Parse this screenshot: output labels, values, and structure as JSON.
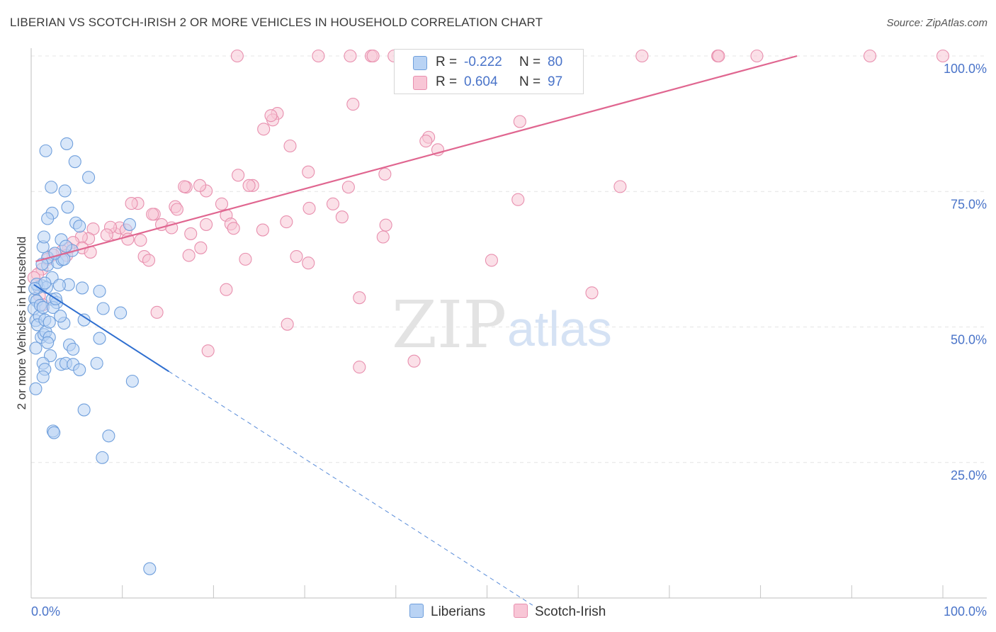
{
  "title": "LIBERIAN VS SCOTCH-IRISH 2 OR MORE VEHICLES IN HOUSEHOLD CORRELATION CHART",
  "source": "Source: ZipAtlas.com",
  "watermark": {
    "zip": "ZIP",
    "atlas": "atlas"
  },
  "colors": {
    "blue_fill": "#b9d3f4",
    "blue_stroke": "#6f9fdc",
    "blue_line": "#2f6fd0",
    "pink_fill": "#f8c6d6",
    "pink_stroke": "#e88fae",
    "pink_line": "#e06690",
    "tick": "#4a74c9",
    "grid": "#e4e4e4"
  },
  "legend": {
    "rows": [
      {
        "series": "Liberians",
        "r_label": "R =",
        "r_value": "-0.222",
        "n_label": "N =",
        "n_value": "80"
      },
      {
        "series": "Scotch-Irish",
        "r_label": "R =",
        "r_value": "0.604",
        "n_label": "N =",
        "n_value": "97"
      }
    ]
  },
  "bottom_legend": [
    "Liberians",
    "Scotch-Irish"
  ],
  "chart_data": {
    "type": "scatter",
    "title": "LIBERIAN VS SCOTCH-IRISH 2 OR MORE VEHICLES IN HOUSEHOLD CORRELATION CHART",
    "xlabel": "",
    "ylabel": "2 or more Vehicles in Household",
    "xlim": [
      0,
      100
    ],
    "ylim": [
      0,
      100
    ],
    "x_tick_labels": [
      "0.0%",
      "100.0%"
    ],
    "y_ticks": [
      25,
      50,
      75,
      100
    ],
    "y_tick_labels": [
      "25.0%",
      "50.0%",
      "75.0%",
      "100.0%"
    ],
    "series": [
      {
        "name": "Liberians",
        "r": -0.222,
        "n": 80,
        "trend": {
          "x0": 0.3,
          "y0": 57.8,
          "x1": 15.1,
          "y1": 41.8,
          "dash_to_x": 55.0
        },
        "points": [
          [
            0.4,
            55.2
          ],
          [
            0.6,
            54.8
          ],
          [
            0.8,
            57.3
          ],
          [
            1.2,
            57.6
          ],
          [
            0.3,
            53.4
          ],
          [
            0.5,
            51.2
          ],
          [
            0.9,
            52.0
          ],
          [
            0.7,
            50.4
          ],
          [
            1.0,
            54.0
          ],
          [
            1.3,
            53.6
          ],
          [
            0.5,
            46.1
          ],
          [
            1.1,
            48.1
          ],
          [
            1.4,
            48.6
          ],
          [
            1.6,
            49.1
          ],
          [
            2.0,
            48.1
          ],
          [
            1.8,
            47.1
          ],
          [
            2.3,
            55.1
          ],
          [
            2.8,
            54.5
          ],
          [
            1.7,
            57.3
          ],
          [
            2.4,
            53.6
          ],
          [
            1.5,
            51.3
          ],
          [
            2.1,
            44.7
          ],
          [
            1.3,
            43.3
          ],
          [
            1.5,
            42.2
          ],
          [
            1.3,
            40.8
          ],
          [
            0.5,
            38.6
          ],
          [
            3.6,
            50.7
          ],
          [
            4.2,
            46.7
          ],
          [
            4.6,
            45.9
          ],
          [
            3.3,
            43.1
          ],
          [
            3.8,
            43.3
          ],
          [
            4.6,
            43.1
          ],
          [
            5.3,
            42.1
          ],
          [
            5.8,
            51.3
          ],
          [
            5.6,
            57.2
          ],
          [
            4.1,
            57.8
          ],
          [
            2.3,
            59.1
          ],
          [
            1.8,
            61.4
          ],
          [
            2.9,
            61.9
          ],
          [
            3.4,
            62.4
          ],
          [
            1.8,
            62.8
          ],
          [
            1.3,
            64.8
          ],
          [
            1.4,
            66.6
          ],
          [
            3.3,
            66.1
          ],
          [
            4.5,
            64.1
          ],
          [
            4.9,
            69.2
          ],
          [
            5.3,
            68.6
          ],
          [
            2.3,
            71.0
          ],
          [
            1.8,
            70.0
          ],
          [
            4.0,
            72.1
          ],
          [
            3.7,
            75.1
          ],
          [
            2.2,
            75.8
          ],
          [
            6.3,
            77.6
          ],
          [
            4.8,
            80.5
          ],
          [
            3.9,
            83.8
          ],
          [
            1.6,
            82.5
          ],
          [
            7.5,
            56.6
          ],
          [
            7.9,
            53.4
          ],
          [
            9.8,
            52.6
          ],
          [
            7.5,
            47.9
          ],
          [
            7.2,
            43.3
          ],
          [
            11.1,
            40.0
          ],
          [
            5.8,
            34.7
          ],
          [
            8.5,
            29.9
          ],
          [
            2.4,
            30.8
          ],
          [
            2.5,
            30.5
          ],
          [
            7.8,
            25.9
          ],
          [
            13.0,
            5.4
          ],
          [
            10.8,
            68.9
          ],
          [
            3.8,
            64.9
          ],
          [
            3.2,
            52.0
          ],
          [
            2.0,
            50.9
          ],
          [
            2.7,
            55.2
          ],
          [
            0.6,
            57.9
          ],
          [
            1.5,
            58.1
          ],
          [
            3.1,
            57.7
          ],
          [
            0.4,
            57.1
          ],
          [
            3.6,
            62.5
          ],
          [
            2.6,
            63.6
          ],
          [
            1.2,
            61.6
          ]
        ]
      },
      {
        "name": "Scotch-Irish",
        "r": 0.604,
        "n": 97,
        "trend": {
          "x0": 0.5,
          "y0": 62.1,
          "x1": 84.0,
          "y1": 100.0
        },
        "points": [
          [
            22.6,
            100
          ],
          [
            31.5,
            100
          ],
          [
            35.0,
            100
          ],
          [
            37.3,
            100
          ],
          [
            37.5,
            100
          ],
          [
            39.8,
            100
          ],
          [
            40.5,
            100
          ],
          [
            46.0,
            100
          ],
          [
            56.4,
            100
          ],
          [
            67.0,
            100
          ],
          [
            75.3,
            100
          ],
          [
            75.4,
            100
          ],
          [
            79.6,
            100
          ],
          [
            92.0,
            100
          ],
          [
            100,
            100
          ],
          [
            35.3,
            91.1
          ],
          [
            27.0,
            89.4
          ],
          [
            26.5,
            88.2
          ],
          [
            25.5,
            86.5
          ],
          [
            53.6,
            87.9
          ],
          [
            43.6,
            85.0
          ],
          [
            43.3,
            84.3
          ],
          [
            44.6,
            82.7
          ],
          [
            28.4,
            83.4
          ],
          [
            30.4,
            78.6
          ],
          [
            38.8,
            78.2
          ],
          [
            22.7,
            78.0
          ],
          [
            24.3,
            76.1
          ],
          [
            23.9,
            76.1
          ],
          [
            17.0,
            75.8
          ],
          [
            16.8,
            75.9
          ],
          [
            19.2,
            75.1
          ],
          [
            34.8,
            75.8
          ],
          [
            64.6,
            75.9
          ],
          [
            11.7,
            72.8
          ],
          [
            13.5,
            70.8
          ],
          [
            15.8,
            72.2
          ],
          [
            16.0,
            71.7
          ],
          [
            20.9,
            72.7
          ],
          [
            21.4,
            70.6
          ],
          [
            30.5,
            71.9
          ],
          [
            33.1,
            72.7
          ],
          [
            34.1,
            70.3
          ],
          [
            14.3,
            68.9
          ],
          [
            15.4,
            68.3
          ],
          [
            17.5,
            67.2
          ],
          [
            19.2,
            68.9
          ],
          [
            21.9,
            69.0
          ],
          [
            25.4,
            67.9
          ],
          [
            28.0,
            69.4
          ],
          [
            38.6,
            66.6
          ],
          [
            38.9,
            68.8
          ],
          [
            9.2,
            67.2
          ],
          [
            9.7,
            68.3
          ],
          [
            10.4,
            67.9
          ],
          [
            8.7,
            68.4
          ],
          [
            6.8,
            68.1
          ],
          [
            6.3,
            66.3
          ],
          [
            5.5,
            66.6
          ],
          [
            4.6,
            65.6
          ],
          [
            4.1,
            64.5
          ],
          [
            5.6,
            64.6
          ],
          [
            3.4,
            64.0
          ],
          [
            3.9,
            63.2
          ],
          [
            2.4,
            63.3
          ],
          [
            1.8,
            62.5
          ],
          [
            1.2,
            60.7
          ],
          [
            0.7,
            59.7
          ],
          [
            0.3,
            59.1
          ],
          [
            0.9,
            55.8
          ],
          [
            1.3,
            54.1
          ],
          [
            6.5,
            63.8
          ],
          [
            10.6,
            66.2
          ],
          [
            12.4,
            63.0
          ],
          [
            12.9,
            62.3
          ],
          [
            17.3,
            63.2
          ],
          [
            18.6,
            64.6
          ],
          [
            23.5,
            62.5
          ],
          [
            29.1,
            63.0
          ],
          [
            30.4,
            61.8
          ],
          [
            50.5,
            62.3
          ],
          [
            53.4,
            73.5
          ],
          [
            61.5,
            56.3
          ],
          [
            21.4,
            56.9
          ],
          [
            36.0,
            55.4
          ],
          [
            13.8,
            52.7
          ],
          [
            28.1,
            50.5
          ],
          [
            19.4,
            45.6
          ],
          [
            36.0,
            42.6
          ],
          [
            42.0,
            43.7
          ],
          [
            11.0,
            72.8
          ],
          [
            12.0,
            66.0
          ],
          [
            22.2,
            68.2
          ],
          [
            18.5,
            76.1
          ],
          [
            26.3,
            89.0
          ],
          [
            13.3,
            70.8
          ],
          [
            8.3,
            67.0
          ]
        ]
      }
    ]
  }
}
